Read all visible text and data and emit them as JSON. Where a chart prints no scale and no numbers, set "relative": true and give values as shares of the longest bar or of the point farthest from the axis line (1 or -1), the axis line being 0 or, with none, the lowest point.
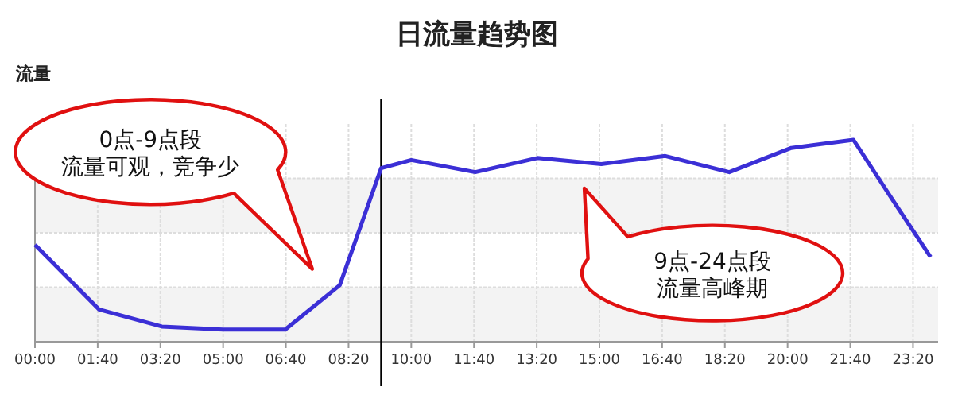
{
  "chart_data": {
    "type": "line",
    "title": "日流量趋势图",
    "ylabel": "流量",
    "relative": true,
    "grid": true,
    "marker": "none",
    "line_style": "solid",
    "x": [
      0,
      1.7,
      3.37,
      5,
      6.65,
      8.1,
      9.2,
      10,
      11.7,
      13.35,
      15.05,
      16.75,
      18.45,
      20.1,
      21.75,
      22.8,
      23.8
    ],
    "xlim": [
      0,
      24
    ],
    "xticks": [
      {
        "value": 0,
        "label": "00:00"
      },
      {
        "value": 1.6667,
        "label": "01:40"
      },
      {
        "value": 3.3333,
        "label": "03:20"
      },
      {
        "value": 5,
        "label": "05:00"
      },
      {
        "value": 6.6667,
        "label": "06:40"
      },
      {
        "value": 8.3333,
        "label": "08:20"
      },
      {
        "value": 10,
        "label": "10:00"
      },
      {
        "value": 11.6667,
        "label": "11:40"
      },
      {
        "value": 13.3333,
        "label": "13:20"
      },
      {
        "value": 15,
        "label": "15:00"
      },
      {
        "value": 16.6667,
        "label": "16:40"
      },
      {
        "value": 18.3333,
        "label": "18:20"
      },
      {
        "value": 20,
        "label": "20:00"
      },
      {
        "value": 21.6667,
        "label": "21:40"
      },
      {
        "value": 23.3333,
        "label": "23:20"
      }
    ],
    "series": [
      {
        "color": "#3b2fd6",
        "values": [
          0.48,
          0.16,
          0.075,
          0.06,
          0.06,
          0.28,
          0.86,
          0.9,
          0.84,
          0.91,
          0.88,
          0.92,
          0.84,
          0.96,
          1,
          0.7,
          0.42
        ]
      }
    ],
    "bands": [
      {
        "axis": "y",
        "from": 0,
        "to": 0.27,
        "color": "#f3f3f3"
      },
      {
        "axis": "y",
        "from": 0.54,
        "to": 0.81,
        "color": "#f3f3f3"
      }
    ],
    "ref_lines": [
      {
        "axis": "x",
        "value": 9.2,
        "color": "#000000"
      }
    ],
    "annotations": [
      "0点-9点段",
      "流量可观，竞争少",
      "9点-24点段",
      "流量高峰期"
    ]
  }
}
